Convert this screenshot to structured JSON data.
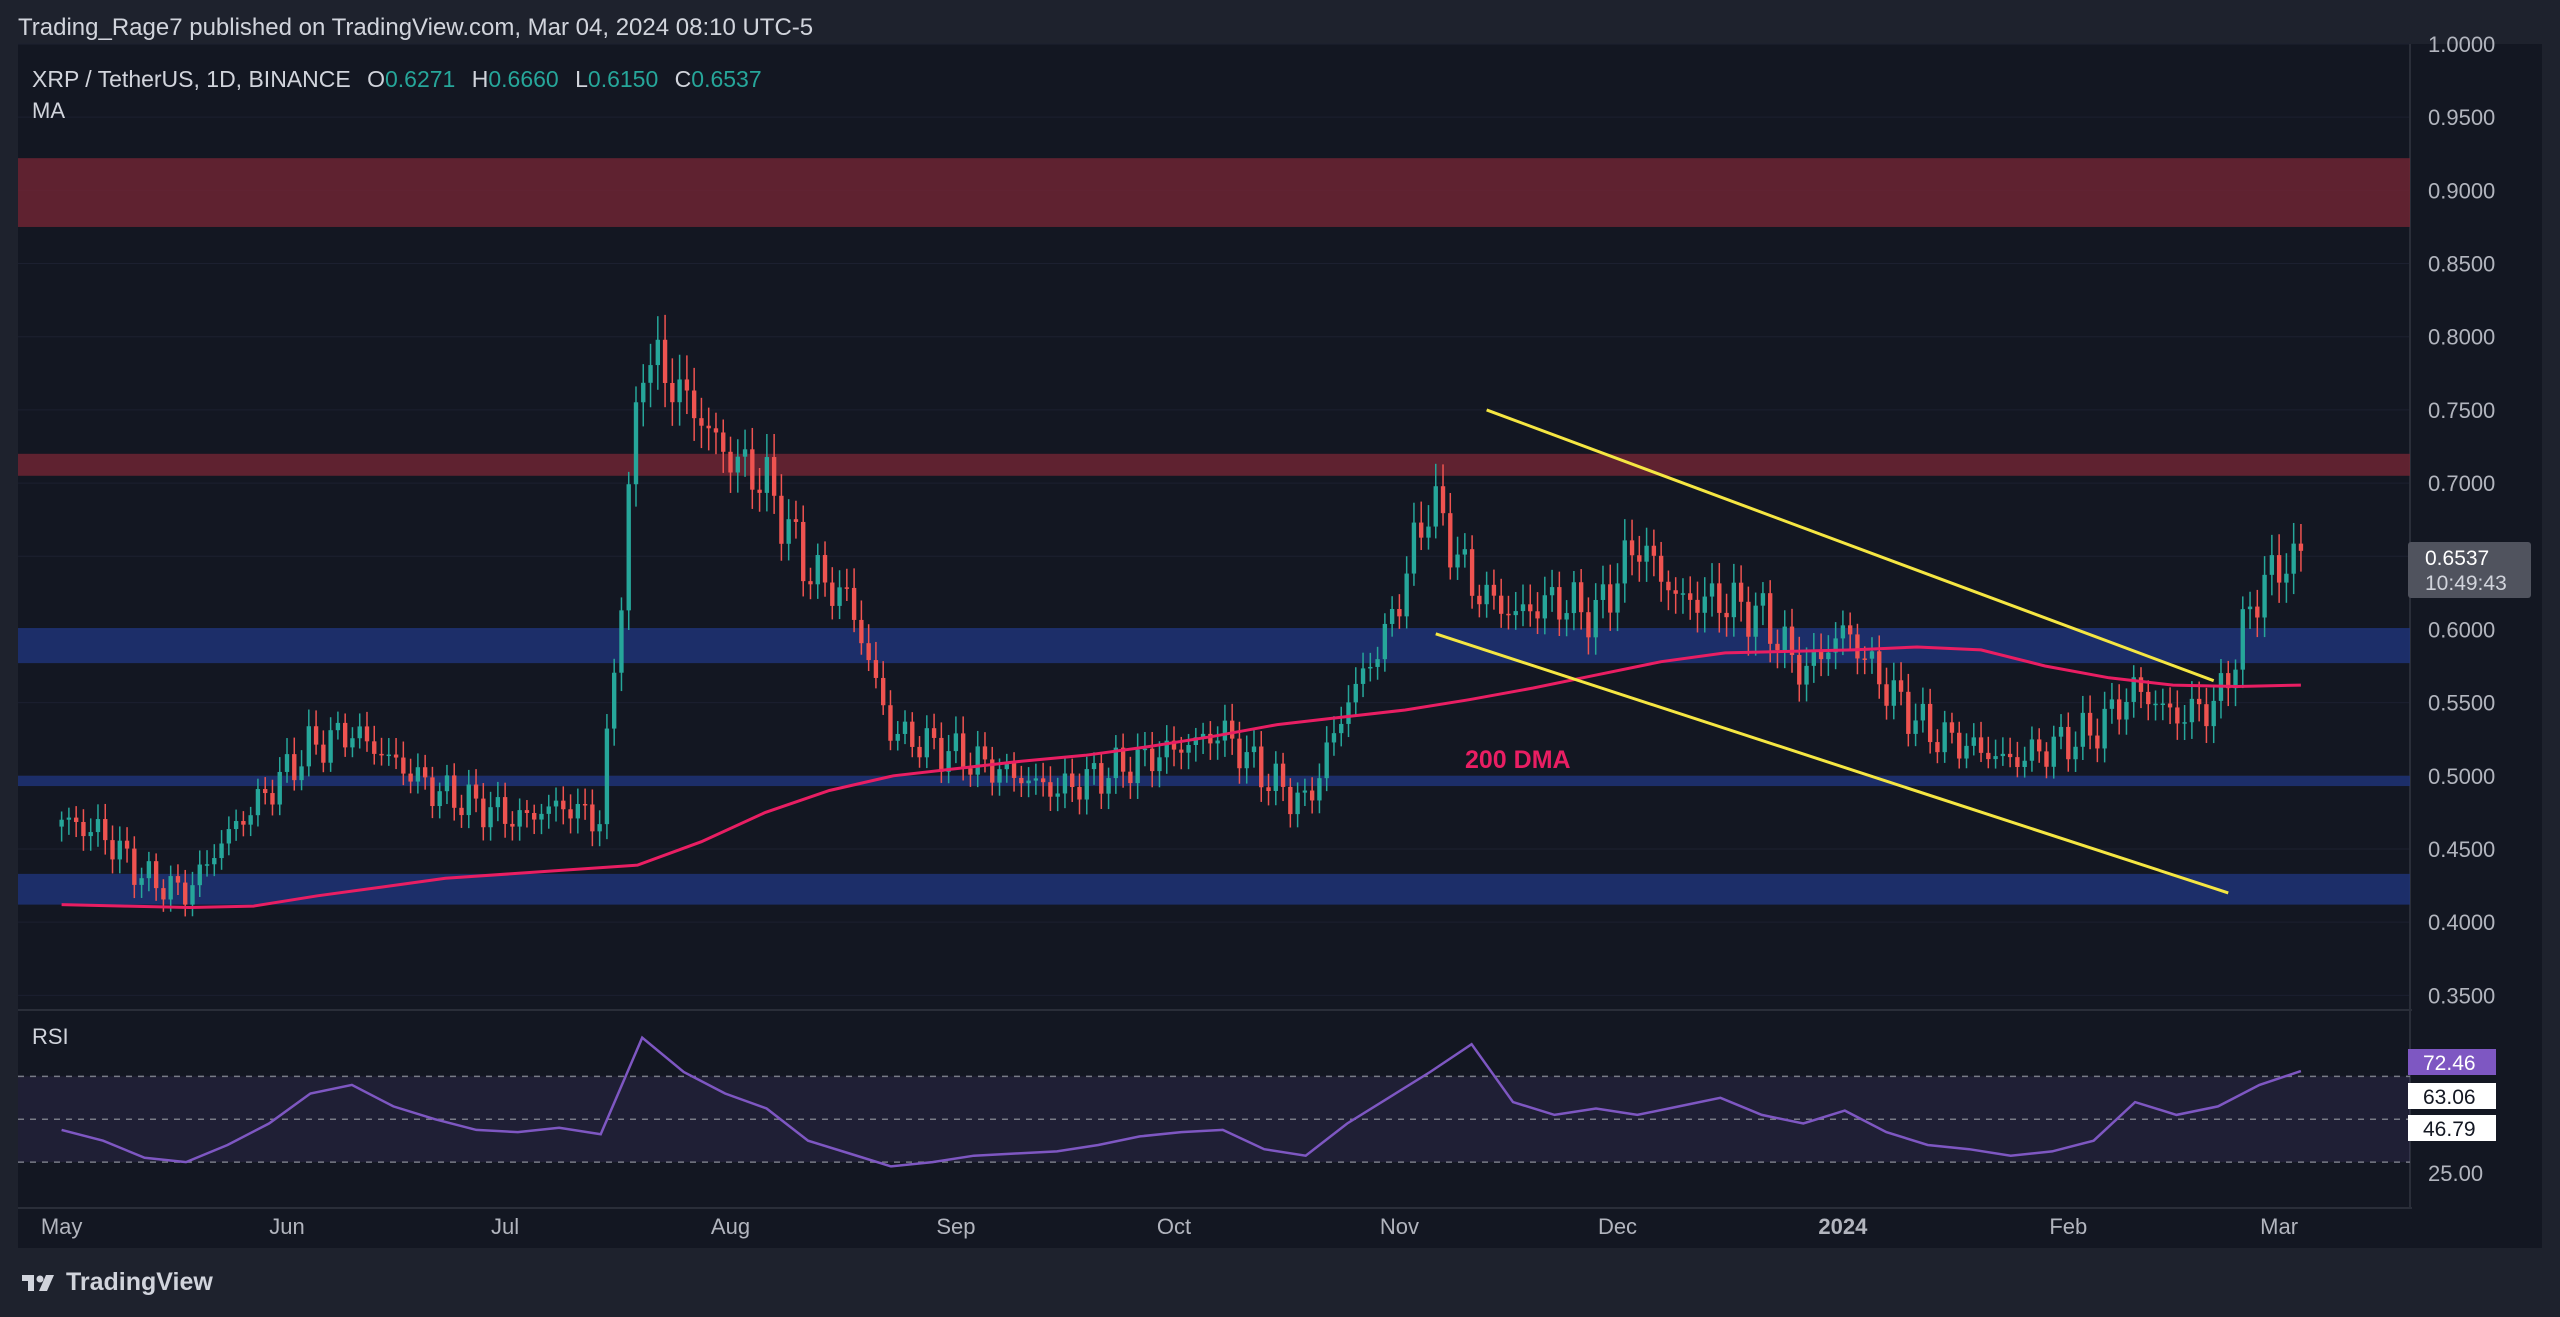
{
  "header": {
    "publisher_line": "Trading_Rage7 published on TradingView.com, Mar 04, 2024 08:10 UTC-5"
  },
  "legend": {
    "symbol": "XRP / TetherUS, 1D, BINANCE",
    "open_label": "O",
    "open": "0.6271",
    "high_label": "H",
    "high": "0.6660",
    "low_label": "L",
    "low": "0.6150",
    "close_label": "C",
    "close": "0.6537",
    "indicator": "MA",
    "rsi_label": "RSI"
  },
  "annotations": {
    "ma_label": "200 DMA"
  },
  "price_badge": {
    "price": "0.6537",
    "countdown": "10:49:43"
  },
  "rsi_badges": [
    "72.46",
    "63.06",
    "46.79"
  ],
  "footer": {
    "brand": "TradingView"
  },
  "colors": {
    "background": "#131722",
    "up": "#26a69a",
    "down": "#ef5350",
    "ma": "#e91e63",
    "trendline": "#f5e642",
    "resistance_zone": "#6d2433",
    "support_zone": "#1e3275",
    "rsi_line": "#7e57c2"
  },
  "chart_data": [
    {
      "type": "candlestick",
      "title": "XRP / TetherUS, 1D, BINANCE",
      "ylim": [
        0.34,
        1.0
      ],
      "yticks": [
        "0.3500",
        "0.4000",
        "0.4500",
        "0.5000",
        "0.5500",
        "0.6000",
        "0.6500",
        "0.7000",
        "0.7500",
        "0.8000",
        "0.8500",
        "0.9000",
        "0.9500",
        "1.0000"
      ],
      "xticks": [
        "May",
        "Jun",
        "Jul",
        "Aug",
        "Sep",
        "Oct",
        "Nov",
        "Dec",
        "2024",
        "Feb",
        "Mar"
      ],
      "date_range": [
        "2023-05-01",
        "2024-03-04"
      ],
      "weekly_closes": [
        0.47,
        0.46,
        0.43,
        0.42,
        0.46,
        0.49,
        0.52,
        0.53,
        0.51,
        0.49,
        0.48,
        0.47,
        0.48,
        0.47,
        0.79,
        0.76,
        0.72,
        0.7,
        0.64,
        0.62,
        0.53,
        0.52,
        0.51,
        0.5,
        0.49,
        0.5,
        0.51,
        0.52,
        0.53,
        0.5,
        0.48,
        0.55,
        0.6,
        0.69,
        0.63,
        0.61,
        0.62,
        0.61,
        0.66,
        0.62,
        0.62,
        0.61,
        0.57,
        0.6,
        0.56,
        0.53,
        0.52,
        0.51,
        0.52,
        0.53,
        0.56,
        0.54,
        0.55,
        0.63,
        0.6537
      ],
      "series": [
        {
          "name": "200 DMA",
          "type": "line",
          "values": [
            0.412,
            0.411,
            0.41,
            0.411,
            0.418,
            0.424,
            0.43,
            0.433,
            0.436,
            0.439,
            0.455,
            0.475,
            0.49,
            0.5,
            0.505,
            0.51,
            0.514,
            0.52,
            0.527,
            0.535,
            0.54,
            0.545,
            0.552,
            0.56,
            0.569,
            0.578,
            0.584,
            0.585,
            0.586,
            0.588,
            0.586,
            0.575,
            0.567,
            0.562,
            0.561,
            0.562
          ]
        }
      ],
      "zones": [
        {
          "type": "resistance",
          "from": 0.875,
          "to": 0.922
        },
        {
          "type": "resistance",
          "from": 0.705,
          "to": 0.72
        },
        {
          "type": "support",
          "from": 0.577,
          "to": 0.601
        },
        {
          "type": "support",
          "from": 0.493,
          "to": 0.5
        },
        {
          "type": "support",
          "from": 0.412,
          "to": 0.433
        }
      ],
      "trendlines": [
        {
          "from": [
            "2023-11-13",
            0.75
          ],
          "to": [
            "2024-02-21",
            0.565
          ]
        },
        {
          "from": [
            "2023-11-06",
            0.597
          ],
          "to": [
            "2024-02-23",
            0.42
          ]
        }
      ]
    },
    {
      "type": "line",
      "title": "RSI",
      "ylim": [
        10,
        100
      ],
      "levels": [
        70,
        50,
        30
      ],
      "ytick": "25.00",
      "values": [
        45,
        40,
        32,
        30,
        38,
        48,
        62,
        66,
        56,
        50,
        45,
        44,
        46,
        43,
        88,
        72,
        62,
        55,
        40,
        34,
        28,
        30,
        33,
        34,
        35,
        38,
        42,
        44,
        45,
        36,
        33,
        48,
        60,
        72,
        85,
        58,
        52,
        55,
        52,
        56,
        60,
        52,
        48,
        54,
        44,
        38,
        36,
        33,
        35,
        40,
        58,
        52,
        56,
        66,
        72.46
      ]
    }
  ]
}
